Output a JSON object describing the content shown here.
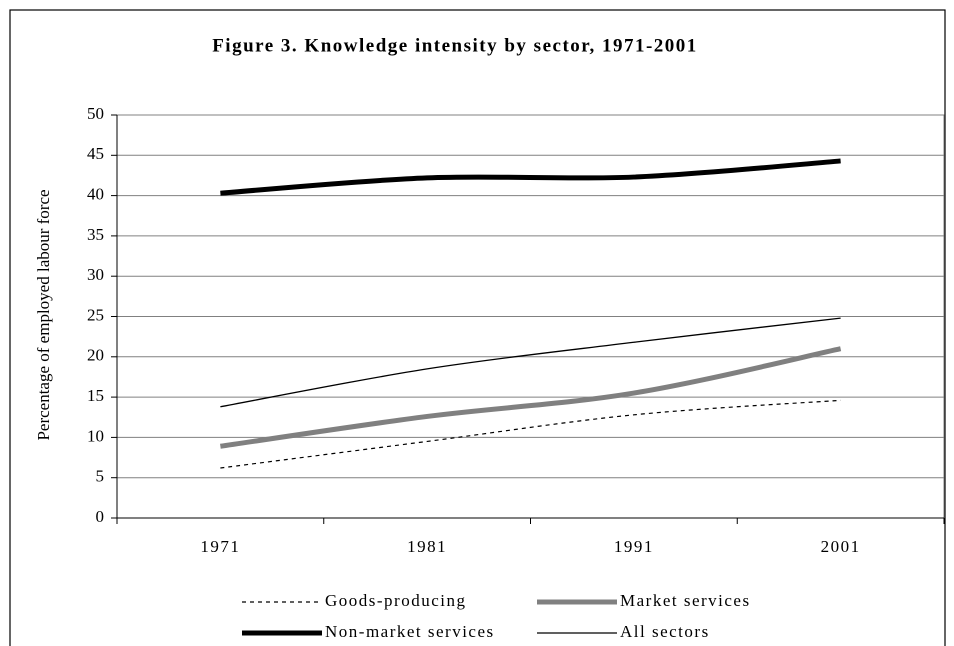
{
  "chart_data": {
    "type": "line",
    "title": "Figure 3.  Knowledge intensity by sector, 1971-2001",
    "y_label": "Percentage of employed labour force",
    "categories": [
      "1971",
      "1981",
      "1991",
      "2001"
    ],
    "series": [
      {
        "name": "Goods-producing",
        "color": "#000000",
        "line_style": "dashed",
        "line_width": 1.2,
        "values": [
          6.2,
          9.5,
          12.8,
          14.6
        ]
      },
      {
        "name": "Market services",
        "color": "#808080",
        "line_style": "solid",
        "line_width": 5,
        "values": [
          8.9,
          12.6,
          15.5,
          21.0
        ]
      },
      {
        "name": "Non-market services",
        "color": "#000000",
        "line_style": "solid",
        "line_width": 5,
        "values": [
          40.3,
          42.2,
          42.3,
          44.3
        ]
      },
      {
        "name": "All sectors",
        "color": "#000000",
        "line_style": "solid",
        "line_width": 1.3,
        "values": [
          13.8,
          18.5,
          21.8,
          24.8
        ]
      }
    ],
    "ylim": [
      0,
      50
    ],
    "yticks": [
      0,
      5,
      10,
      15,
      20,
      25,
      30,
      35,
      40,
      45,
      50
    ],
    "grid": true,
    "legend": "bottom"
  }
}
